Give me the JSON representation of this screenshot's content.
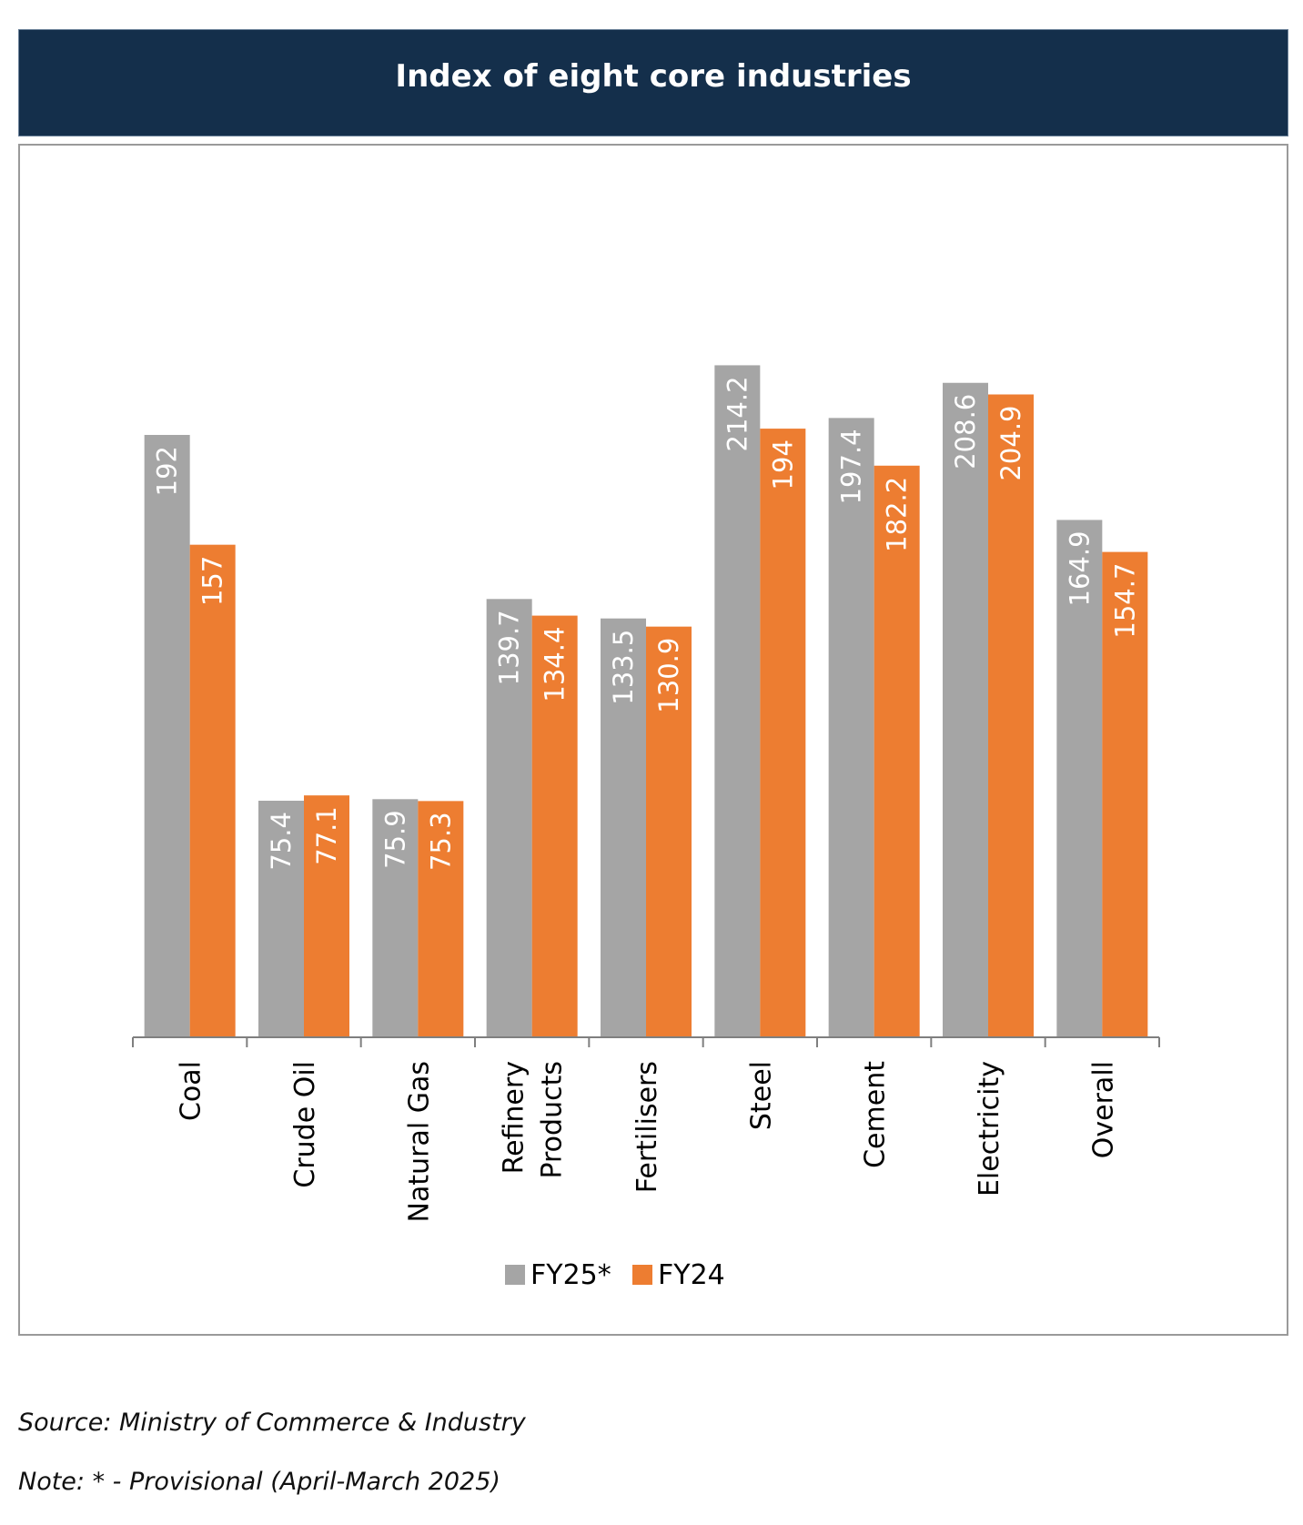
{
  "header": {
    "title": "Index of eight core industries"
  },
  "chart_data": {
    "type": "bar",
    "title": "Index of eight core industries",
    "categories": [
      "Coal",
      "Crude Oil",
      "Natural Gas",
      "Refinery Products",
      "Fertilisers",
      "Steel",
      "Cement",
      "Electricity",
      "Overall"
    ],
    "category_lines": [
      [
        "Coal"
      ],
      [
        "Crude Oil"
      ],
      [
        "Natural Gas"
      ],
      [
        "Refinery",
        "Products"
      ],
      [
        "Fertilisers"
      ],
      [
        "Steel"
      ],
      [
        "Cement"
      ],
      [
        "Electricity"
      ],
      [
        "Overall"
      ]
    ],
    "series": [
      {
        "name": "FY25*",
        "color": "#a5a5a5",
        "values": [
          192,
          75.4,
          75.9,
          139.7,
          133.5,
          214.2,
          197.4,
          208.6,
          164.9
        ]
      },
      {
        "name": "FY24",
        "color": "#ed7d31",
        "values": [
          157,
          77.1,
          75.3,
          134.4,
          130.9,
          194,
          182.2,
          204.9,
          154.7
        ]
      }
    ],
    "ylim": [
      0,
      250
    ],
    "grid": false,
    "legend": "bottom",
    "data_labels": "inside-end-rotated"
  },
  "footer": {
    "source": "Source: Ministry of Commerce & Industry",
    "note": "Note: * - Provisional (April-March 2025)"
  }
}
